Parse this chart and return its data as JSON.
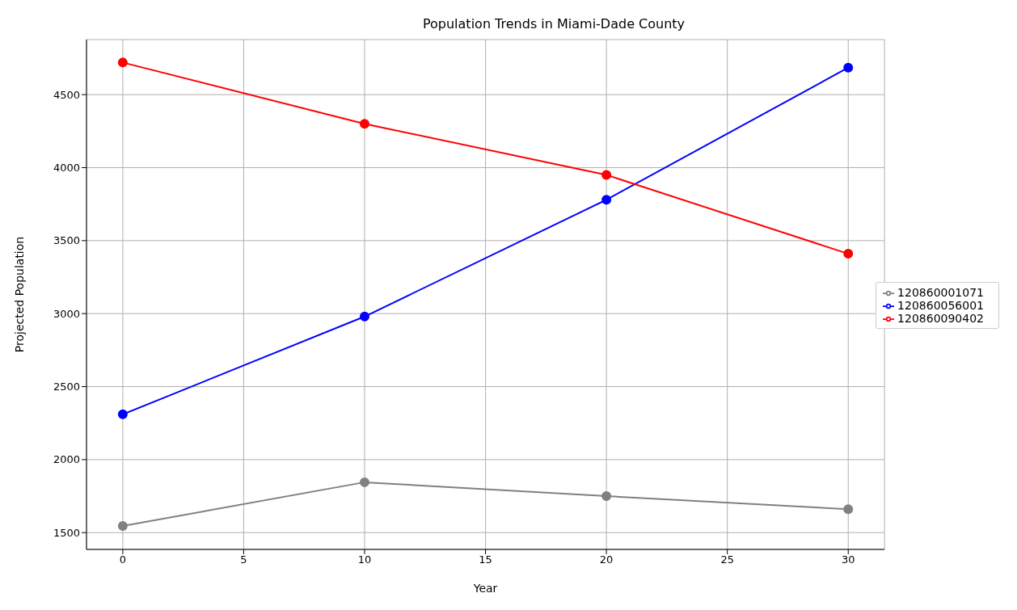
{
  "chart_data": {
    "type": "line",
    "title": "Population Trends in Miami-Dade County",
    "xlabel": "Year",
    "ylabel": "Projected Population",
    "x": [
      0,
      10,
      20,
      30
    ],
    "series": [
      {
        "name": "120860001071",
        "color": "#808080",
        "values": [
          1545,
          1845,
          1750,
          1660
        ]
      },
      {
        "name": "120860056001",
        "color": "#0000ff",
        "values": [
          2310,
          2980,
          3780,
          4685
        ]
      },
      {
        "name": "120860090402",
        "color": "#ff0000",
        "values": [
          4720,
          4300,
          3950,
          3410
        ]
      }
    ],
    "xlim": [
      -1.5,
      31.5
    ],
    "xticks": [
      0,
      5,
      10,
      15,
      20,
      25,
      30
    ],
    "ylim": [
      1385,
      4877
    ],
    "yticks": [
      1500,
      2000,
      2500,
      3000,
      3500,
      4000,
      4500
    ],
    "grid": true,
    "legend": "right",
    "marker": "circle",
    "line_style": "solid"
  }
}
